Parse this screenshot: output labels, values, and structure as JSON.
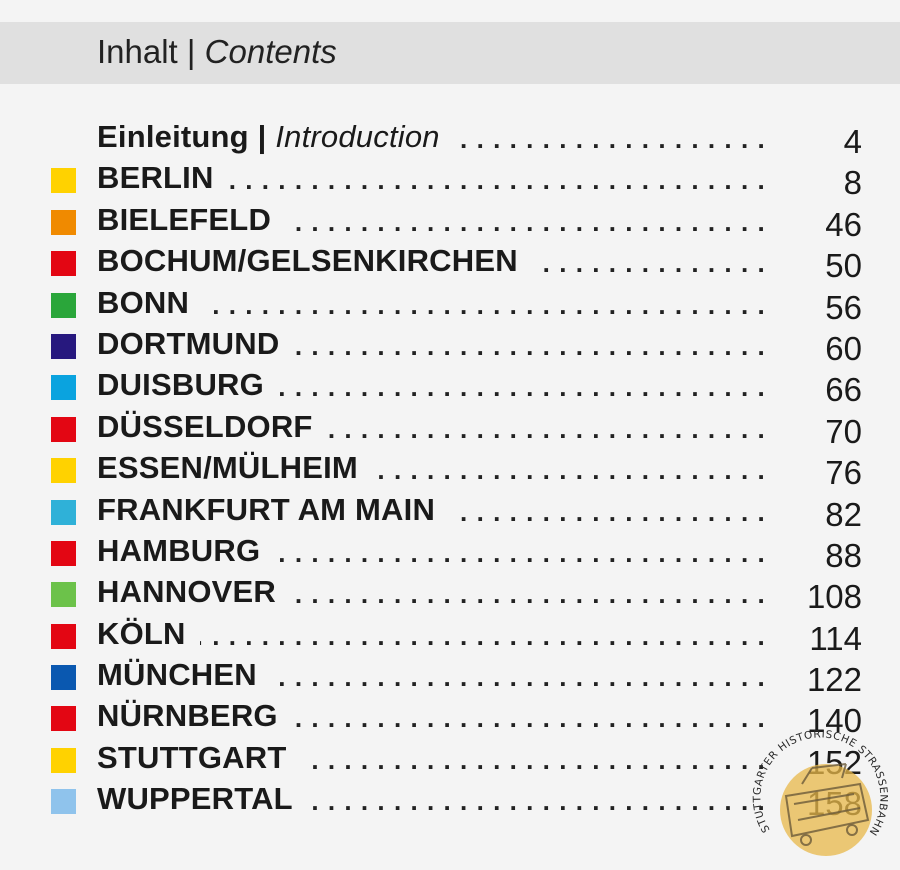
{
  "header": {
    "title_de": "Inhalt",
    "separator": " | ",
    "title_en": "Contents"
  },
  "toc": [
    {
      "label_de": "Einleitung",
      "separator": " | ",
      "label_en": "Introduction",
      "page": "4",
      "color": null
    },
    {
      "label": "BERLIN",
      "page": "8",
      "color": "#ffd200"
    },
    {
      "label": "BIELEFELD",
      "page": "46",
      "color": "#f08a00"
    },
    {
      "label": "BOCHUM/GELSENKIRCHEN",
      "page": "50",
      "color": "#e30613"
    },
    {
      "label": "BONN",
      "page": "56",
      "color": "#2aa63a"
    },
    {
      "label": "DORTMUND",
      "page": "60",
      "color": "#27187e"
    },
    {
      "label": "DUISBURG",
      "page": "66",
      "color": "#0aa3df"
    },
    {
      "label": "DÜSSELDORF",
      "page": "70",
      "color": "#e30613"
    },
    {
      "label": "ESSEN/MÜLHEIM",
      "page": "76",
      "color": "#ffd200"
    },
    {
      "label": "FRANKFURT AM MAIN",
      "page": "82",
      "color": "#2fb1d8"
    },
    {
      "label": "HAMBURG",
      "page": "88",
      "color": "#e30613"
    },
    {
      "label": "HANNOVER",
      "page": "108",
      "color": "#6cc24a"
    },
    {
      "label": "KÖLN",
      "page": "114",
      "color": "#e30613"
    },
    {
      "label": "MÜNCHEN",
      "page": "122",
      "color": "#0a58b0"
    },
    {
      "label": "NÜRNBERG",
      "page": "140",
      "color": "#e30613"
    },
    {
      "label": "STUTTGART",
      "page": "152",
      "color": "#ffd200"
    },
    {
      "label": "WUPPERTAL",
      "page": "158",
      "color": "#8fc3ec"
    }
  ],
  "seal": {
    "text": "STUTTGARTER HISTORISCHE STRASSENBAHNEN E.V.",
    "color": "#e8b84a"
  }
}
